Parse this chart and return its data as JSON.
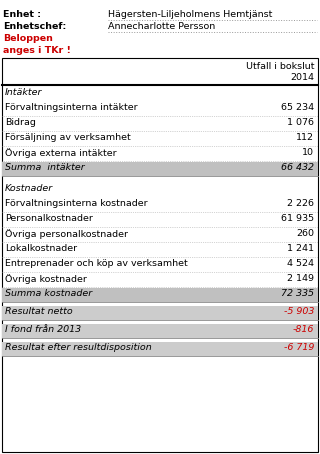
{
  "header_label1": "Enhet :",
  "header_label2": "Enhetschef:",
  "header_label3": "Beloppen",
  "header_label4": "anges i TKr !",
  "header_value1": "Hägersten-Liljeholmens Hemtjänst",
  "header_value2": "Annecharlotte Persson",
  "col_header_line1": "Utfall i bokslut",
  "col_header_line2": "2014",
  "sections": [
    {
      "title": "Intäkter",
      "rows": [
        {
          "label": "Förvaltningsinterna intäkter",
          "value": "65 234",
          "italic": false,
          "bg": null
        },
        {
          "label": "Bidrag",
          "value": "1 076",
          "italic": false,
          "bg": null
        },
        {
          "label": "Försäljning av verksamhet",
          "value": "112",
          "italic": false,
          "bg": null
        },
        {
          "label": "Övriga externa intäkter",
          "value": "10",
          "italic": false,
          "bg": null
        },
        {
          "label": "Summa  intäkter",
          "value": "66 432",
          "italic": true,
          "bg": "#c0c0c0"
        }
      ]
    },
    {
      "title": "Kostnader",
      "rows": [
        {
          "label": "Förvaltningsinterna kostnader",
          "value": "2 226",
          "italic": false,
          "bg": null
        },
        {
          "label": "Personalkostnader",
          "value": "61 935",
          "italic": false,
          "bg": null
        },
        {
          "label": "Övriga personalkostnader",
          "value": "260",
          "italic": false,
          "bg": null
        },
        {
          "label": "Lokalkostnader",
          "value": "1 241",
          "italic": false,
          "bg": null
        },
        {
          "label": "Entreprenader och köp av verksamhet",
          "value": "4 524",
          "italic": false,
          "bg": null
        },
        {
          "label": "Övriga kostnader",
          "value": "2 149",
          "italic": false,
          "bg": null
        },
        {
          "label": "Summa kostnader",
          "value": "72 335",
          "italic": true,
          "bg": "#c0c0c0"
        }
      ]
    }
  ],
  "summary_rows": [
    {
      "label": "Resultat netto",
      "value": "-5 903",
      "val_color": "#cc0000",
      "bg": "#cccccc"
    },
    {
      "label": "I fond från 2013",
      "value": "-816",
      "val_color": "#cc0000",
      "bg": "#cccccc"
    },
    {
      "label": "Resultat efter resultdisposition",
      "value": "-6 719",
      "val_color": "#cc0000",
      "bg": "#cccccc"
    }
  ],
  "bg_color": "#ffffff",
  "header_red": "#cc0000",
  "text_color": "#000000",
  "gray_bg": "#c0c0c0"
}
